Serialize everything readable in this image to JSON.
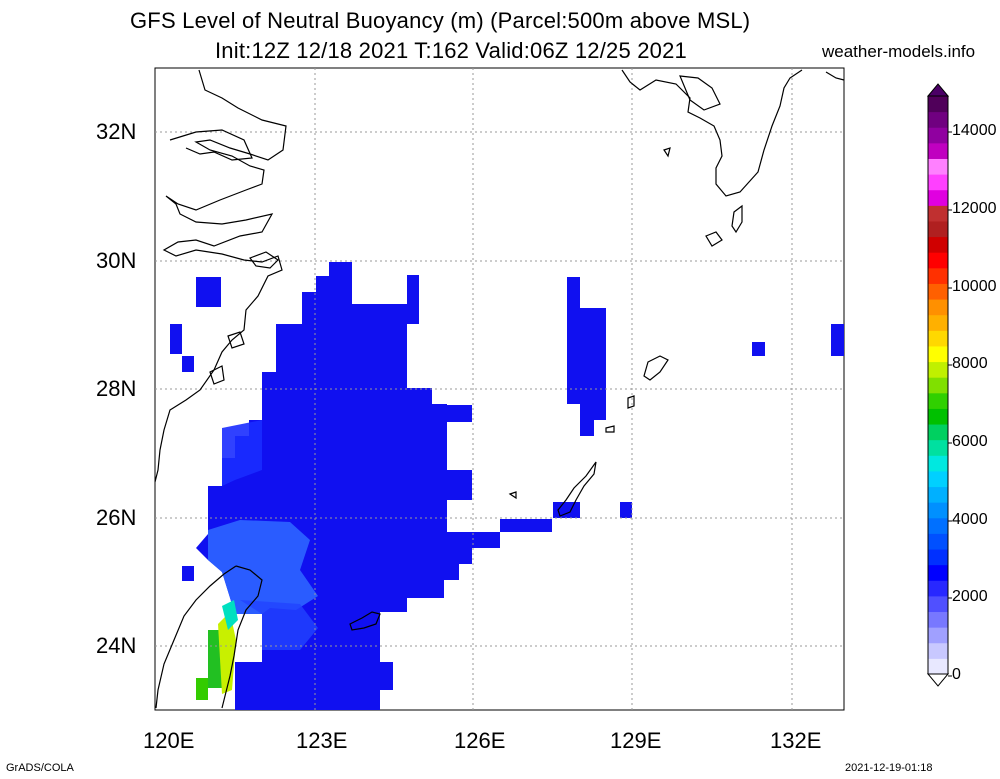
{
  "title": {
    "line1": "GFS Level of Neutral Buoyancy (m) (Parcel:500m above MSL)",
    "line2": "Init:12Z 12/18 2021 T:162 Valid:06Z 12/25 2021"
  },
  "site": "weather-models.info",
  "footer": {
    "left": "GrADS/COLA",
    "right": "2021-12-19-01:18"
  },
  "axes": {
    "lat_labels": [
      "32N",
      "30N",
      "28N",
      "26N",
      "24N"
    ],
    "lon_labels": [
      "120E",
      "123E",
      "126E",
      "129E",
      "132E"
    ]
  },
  "colorbar": {
    "labels": [
      "14000",
      "12000",
      "10000",
      "8000",
      "6000",
      "4000",
      "2000",
      "0"
    ],
    "colors": [
      "#e8e8ff",
      "#c8c8ff",
      "#a0a0ff",
      "#7878ff",
      "#5050ff",
      "#2828ff",
      "#0000ff",
      "#0030ff",
      "#0050ff",
      "#0070ff",
      "#0090ff",
      "#00b0ff",
      "#00d0ff",
      "#00e8e0",
      "#00e0a0",
      "#00d060",
      "#00c000",
      "#30d000",
      "#80e000",
      "#c0f000",
      "#ffff00",
      "#ffd800",
      "#ffb000",
      "#ff9000",
      "#ff6000",
      "#ff3000",
      "#ff0000",
      "#d00000",
      "#b02020",
      "#c03030",
      "#e000e0",
      "#ff40ff",
      "#ff80ff",
      "#c000c0",
      "#9000a0",
      "#700080",
      "#50005a"
    ]
  },
  "legend_colors": {
    "blue": "#1a1aff",
    "light_blue": "#2b6cff",
    "mid_blue": "#1f4dff",
    "green": "#33cc33",
    "yellow_green": "#bff000",
    "cyan": "#00e0e0"
  }
}
